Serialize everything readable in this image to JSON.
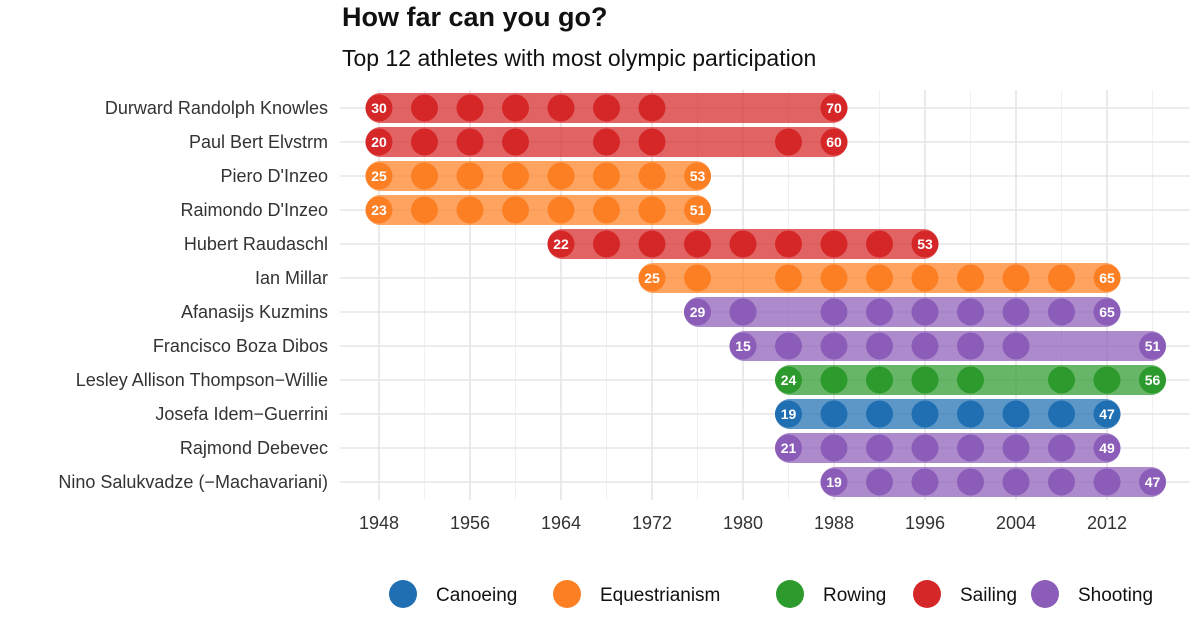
{
  "chart_data": {
    "type": "timeline-dot",
    "title": "How far can you go?",
    "subtitle": "Top 12 athletes with most olympic participation",
    "xlabel": "",
    "ylabel": "",
    "xlim": [
      1945,
      2019
    ],
    "x_ticks": [
      "1948",
      "1956",
      "1964",
      "1972",
      "1980",
      "1988",
      "1996",
      "2004",
      "2012"
    ],
    "grid": true,
    "legend_position": "bottom",
    "sports": [
      {
        "name": "Canoeing",
        "color": "#1f6fb2"
      },
      {
        "name": "Equestrianism",
        "color": "#fd7f23"
      },
      {
        "name": "Rowing",
        "color": "#2c9a2c"
      },
      {
        "name": "Sailing",
        "color": "#d62728"
      },
      {
        "name": "Shooting",
        "color": "#8c5db8"
      }
    ],
    "athletes": [
      {
        "name": "Durward Randolph Knowles",
        "sport": "Sailing",
        "start_year": 1948,
        "end_year": 1988,
        "start_age": "30",
        "end_age": "70",
        "games": [
          1948,
          1952,
          1956,
          1960,
          1964,
          1968,
          1972,
          1988
        ]
      },
      {
        "name": "Paul Bert Elvstrm",
        "sport": "Sailing",
        "start_year": 1948,
        "end_year": 1988,
        "start_age": "20",
        "end_age": "60",
        "games": [
          1948,
          1952,
          1956,
          1960,
          1968,
          1972,
          1984,
          1988
        ]
      },
      {
        "name": "Piero D'Inzeo",
        "sport": "Equestrianism",
        "start_year": 1948,
        "end_year": 1976,
        "start_age": "25",
        "end_age": "53",
        "games": [
          1948,
          1952,
          1956,
          1960,
          1964,
          1968,
          1972,
          1976
        ]
      },
      {
        "name": "Raimondo D'Inzeo",
        "sport": "Equestrianism",
        "start_year": 1948,
        "end_year": 1976,
        "start_age": "23",
        "end_age": "51",
        "games": [
          1948,
          1952,
          1956,
          1960,
          1964,
          1968,
          1972,
          1976
        ]
      },
      {
        "name": "Hubert Raudaschl",
        "sport": "Sailing",
        "start_year": 1964,
        "end_year": 1996,
        "start_age": "22",
        "end_age": "53",
        "games": [
          1964,
          1968,
          1972,
          1976,
          1980,
          1984,
          1988,
          1992,
          1996
        ]
      },
      {
        "name": "Ian Millar",
        "sport": "Equestrianism",
        "start_year": 1972,
        "end_year": 2012,
        "start_age": "25",
        "end_age": "65",
        "games": [
          1972,
          1976,
          1984,
          1988,
          1992,
          1996,
          2000,
          2004,
          2008,
          2012
        ]
      },
      {
        "name": "Afanasijs Kuzmins",
        "sport": "Shooting",
        "start_year": 1976,
        "end_year": 2012,
        "start_age": "29",
        "end_age": "65",
        "games": [
          1976,
          1980,
          1988,
          1992,
          1996,
          2000,
          2004,
          2008,
          2012
        ]
      },
      {
        "name": "Francisco Boza Dibos",
        "sport": "Shooting",
        "start_year": 1980,
        "end_year": 2016,
        "start_age": "15",
        "end_age": "51",
        "games": [
          1980,
          1984,
          1988,
          1992,
          1996,
          2000,
          2004,
          2016
        ]
      },
      {
        "name": "Lesley Allison Thompson−Willie",
        "sport": "Rowing",
        "start_year": 1984,
        "end_year": 2016,
        "start_age": "24",
        "end_age": "56",
        "games": [
          1984,
          1988,
          1992,
          1996,
          2000,
          2008,
          2012,
          2016
        ]
      },
      {
        "name": "Josefa Idem−Guerrini",
        "sport": "Canoeing",
        "start_year": 1984,
        "end_year": 2012,
        "start_age": "19",
        "end_age": "47",
        "games": [
          1984,
          1988,
          1992,
          1996,
          2000,
          2004,
          2008,
          2012
        ]
      },
      {
        "name": "Rajmond Debevec",
        "sport": "Shooting",
        "start_year": 1984,
        "end_year": 2012,
        "start_age": "21",
        "end_age": "49",
        "games": [
          1984,
          1988,
          1992,
          1996,
          2000,
          2004,
          2008,
          2012
        ]
      },
      {
        "name": "Nino Salukvadze (−Machavariani)",
        "sport": "Shooting",
        "start_year": 1988,
        "end_year": 2016,
        "start_age": "19",
        "end_age": "47",
        "games": [
          1988,
          1992,
          1996,
          2000,
          2004,
          2008,
          2012,
          2016
        ]
      }
    ]
  }
}
